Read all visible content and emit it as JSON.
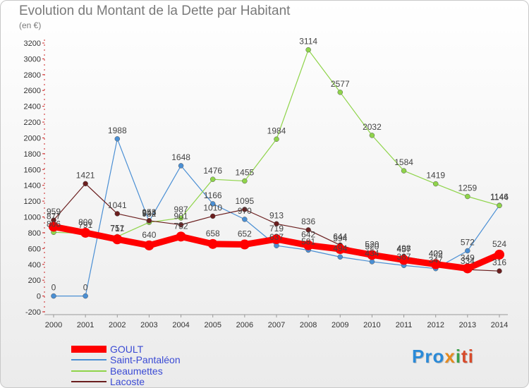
{
  "title": "Evolution du Montant de la Dette par Habitant",
  "subtitle": "(en €)",
  "logo": {
    "p1": "Pro",
    "p2": "x",
    "p3": "i",
    "p4": "ti"
  },
  "chart_data": {
    "type": "line",
    "x": [
      2000,
      2001,
      2002,
      2003,
      2004,
      2005,
      2006,
      2007,
      2008,
      2009,
      2010,
      2011,
      2012,
      2013,
      2014
    ],
    "yticks": [
      -200,
      0,
      200,
      400,
      600,
      800,
      1000,
      1200,
      1400,
      1600,
      1800,
      2000,
      2200,
      2400,
      2600,
      2800,
      3000,
      3200
    ],
    "ylim": [
      -200,
      3200
    ],
    "legend_position": "bottom-left",
    "grid": false,
    "series": [
      {
        "name": "Saint-Pantaléon",
        "color": "#4a8fd4",
        "values": [
          0,
          0,
          1988,
          944,
          1648,
          1166,
          970,
          637,
          581,
          494,
          434,
          387,
          347,
          572,
          1146
        ]
      },
      {
        "name": "Beaumettes",
        "color": "#8fd44a",
        "values": [
          806,
          791,
          751,
          932,
          987,
          1476,
          1455,
          1984,
          3114,
          2577,
          2032,
          1584,
          1419,
          1259,
          1144
        ]
      },
      {
        "name": "Lacoste",
        "color": "#6b1f1f",
        "values": [
          959,
          1421,
          1041,
          953,
          901,
          1010,
          1095,
          913,
          836,
          644,
          520,
          498,
          429,
          334,
          316
        ]
      },
      {
        "name": "GOULT",
        "color": "#ff0000",
        "values": [
          877,
          800,
          717,
          640,
          752,
          658,
          652,
          719,
          642,
          594,
          520,
          457,
          402,
          349,
          524
        ]
      }
    ]
  }
}
